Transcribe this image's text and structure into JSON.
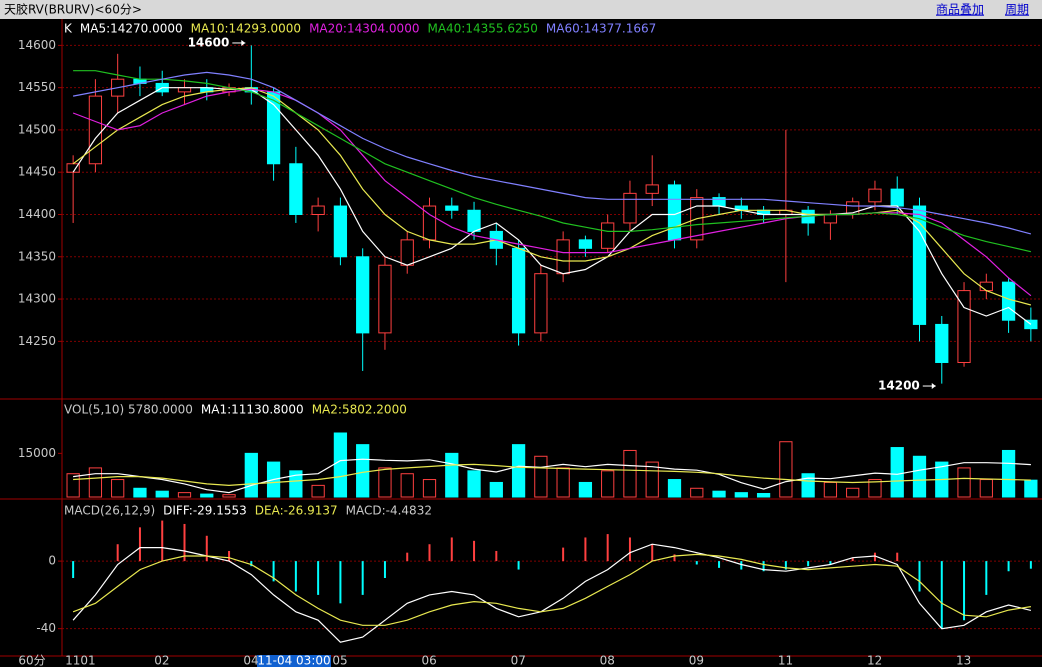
{
  "header": {
    "title": "天胶RV(BRURV)<60分>",
    "links": [
      "商品叠加",
      "周期"
    ]
  },
  "footer": {
    "period": "60分",
    "cursor": "11-04 03:00"
  },
  "chart_data": [
    {
      "type": "candlestick",
      "title": "K",
      "categories": [
        "1101",
        null,
        null,
        null,
        "02",
        null,
        null,
        null,
        "04",
        null,
        null,
        null,
        "05",
        null,
        null,
        null,
        "06",
        null,
        null,
        null,
        "07",
        null,
        null,
        null,
        "08",
        null,
        null,
        null,
        "09",
        null,
        null,
        null,
        "11",
        null,
        null,
        null,
        "12",
        null,
        null,
        null,
        "13",
        null,
        null,
        null
      ],
      "open": [
        14450,
        14460,
        14540,
        14560,
        14555,
        14545,
        14550,
        14545,
        14550,
        14545,
        14460,
        14400,
        14410,
        14350,
        14260,
        14340,
        14370,
        14410,
        14405,
        14380,
        14360,
        14260,
        14330,
        14370,
        14360,
        14390,
        14425,
        14435,
        14370,
        14420,
        14410,
        14405,
        14400,
        14405,
        14390,
        14400,
        14415,
        14430,
        14410,
        14270,
        14225,
        14310,
        14320,
        14275
      ],
      "high": [
        14470,
        14560,
        14590,
        14575,
        14570,
        14560,
        14560,
        14555,
        14600,
        14550,
        14480,
        14420,
        14420,
        14360,
        14350,
        14380,
        14420,
        14420,
        14415,
        14390,
        14370,
        14340,
        14380,
        14375,
        14400,
        14440,
        14470,
        14440,
        14430,
        14425,
        14420,
        14410,
        14500,
        14410,
        14405,
        14420,
        14440,
        14445,
        14420,
        14280,
        14320,
        14330,
        14325,
        14290
      ],
      "low": [
        14390,
        14450,
        14520,
        14540,
        14540,
        14530,
        14535,
        14540,
        14530,
        14440,
        14390,
        14380,
        14340,
        14215,
        14240,
        14330,
        14360,
        14395,
        14370,
        14340,
        14245,
        14250,
        14320,
        14350,
        14355,
        14380,
        14410,
        14360,
        14360,
        14400,
        14395,
        14390,
        14320,
        14375,
        14370,
        14395,
        14405,
        14400,
        14250,
        14200,
        14220,
        14300,
        14260,
        14250
      ],
      "close": [
        14460,
        14540,
        14560,
        14555,
        14545,
        14550,
        14545,
        14550,
        14545,
        14460,
        14400,
        14410,
        14350,
        14260,
        14340,
        14370,
        14410,
        14405,
        14380,
        14360,
        14260,
        14330,
        14370,
        14360,
        14390,
        14425,
        14435,
        14370,
        14420,
        14410,
        14405,
        14400,
        14405,
        14390,
        14400,
        14415,
        14430,
        14410,
        14270,
        14225,
        14310,
        14320,
        14275,
        14265
      ],
      "up_color": "#ff4040",
      "down_color": "#00ffff",
      "max_label": 14600,
      "min_label": 14200,
      "series": [
        {
          "name": "MA5:14270.0000",
          "color": "#ffffff",
          "values": [
            14450,
            14490,
            14520,
            14535,
            14550,
            14550,
            14550,
            14548,
            14548,
            14530,
            14500,
            14470,
            14430,
            14380,
            14350,
            14340,
            14350,
            14360,
            14380,
            14390,
            14370,
            14340,
            14330,
            14335,
            14350,
            14380,
            14400,
            14400,
            14410,
            14410,
            14405,
            14400,
            14400,
            14400,
            14400,
            14402,
            14410,
            14410,
            14380,
            14330,
            14290,
            14280,
            14290,
            14270
          ]
        },
        {
          "name": "MA10:14293.0000",
          "color": "#e8e850",
          "values": [
            14460,
            14480,
            14500,
            14515,
            14530,
            14540,
            14545,
            14548,
            14550,
            14540,
            14520,
            14500,
            14470,
            14430,
            14400,
            14380,
            14370,
            14365,
            14365,
            14370,
            14360,
            14350,
            14345,
            14345,
            14350,
            14360,
            14375,
            14385,
            14395,
            14400,
            14405,
            14405,
            14405,
            14400,
            14400,
            14400,
            14402,
            14405,
            14390,
            14360,
            14330,
            14310,
            14300,
            14293
          ]
        },
        {
          "name": "MA20:14304.0000",
          "color": "#e020e0",
          "values": [
            14520,
            14510,
            14500,
            14505,
            14520,
            14530,
            14540,
            14545,
            14548,
            14545,
            14535,
            14520,
            14500,
            14470,
            14440,
            14420,
            14400,
            14385,
            14375,
            14370,
            14365,
            14360,
            14355,
            14355,
            14355,
            14360,
            14365,
            14370,
            14375,
            14380,
            14385,
            14390,
            14395,
            14398,
            14400,
            14400,
            14402,
            14402,
            14400,
            14390,
            14370,
            14350,
            14325,
            14304
          ]
        },
        {
          "name": "MA40:14355.6250",
          "color": "#20c020",
          "values": [
            14570,
            14570,
            14565,
            14560,
            14560,
            14558,
            14555,
            14550,
            14545,
            14535,
            14520,
            14505,
            14490,
            14475,
            14460,
            14450,
            14440,
            14430,
            14420,
            14412,
            14405,
            14398,
            14390,
            14385,
            14380,
            14380,
            14382,
            14385,
            14388,
            14390,
            14392,
            14394,
            14396,
            14398,
            14400,
            14400,
            14402,
            14400,
            14395,
            14385,
            14375,
            14368,
            14362,
            14356
          ]
        },
        {
          "name": "MA60:14377.1667",
          "color": "#8080ff",
          "values": [
            14540,
            14545,
            14550,
            14555,
            14560,
            14565,
            14568,
            14565,
            14560,
            14550,
            14535,
            14520,
            14505,
            14490,
            14478,
            14468,
            14460,
            14452,
            14445,
            14440,
            14435,
            14430,
            14425,
            14420,
            14418,
            14418,
            14418,
            14418,
            14418,
            14418,
            14418,
            14418,
            14416,
            14414,
            14412,
            14410,
            14410,
            14408,
            14405,
            14400,
            14395,
            14390,
            14384,
            14377
          ]
        }
      ],
      "ylim": [
        14183,
        14630
      ],
      "yticks": [
        14250,
        14300,
        14350,
        14400,
        14450,
        14500,
        14550,
        14600
      ],
      "grid": true
    },
    {
      "type": "bar",
      "title": "VOL(5,10) 5780.0000",
      "values": [
        8000,
        10000,
        6000,
        3000,
        2000,
        1500,
        1000,
        800,
        15000,
        12000,
        9000,
        4000,
        22000,
        18000,
        10000,
        8000,
        6000,
        15000,
        9000,
        5000,
        18000,
        14000,
        10000,
        5000,
        9000,
        16000,
        12000,
        6000,
        3000,
        2000,
        1500,
        1200,
        19000,
        8000,
        5000,
        3000,
        6000,
        17000,
        14000,
        12000,
        10000,
        6000,
        16000,
        5780
      ],
      "series": [
        {
          "name": "MA1:11130.8000",
          "color": "#ffffff",
          "values": [
            7000,
            8000,
            8000,
            7000,
            6000,
            4500,
            2500,
            1500,
            4000,
            6000,
            7500,
            8000,
            12500,
            13000,
            12600,
            12400,
            12800,
            11400,
            9600,
            8600,
            10600,
            10200,
            11200,
            10400,
            11200,
            10800,
            10400,
            9600,
            9200,
            7800,
            4900,
            2700,
            5300,
            6500,
            6300,
            7240,
            8200,
            7800,
            9200,
            10400,
            11800,
            11800,
            11600,
            11130.8
          ]
        },
        {
          "name": "MA2:5802.2000",
          "color": "#e8e850",
          "values": [
            6000,
            6500,
            7000,
            7000,
            6500,
            5500,
            4500,
            4000,
            4500,
            5000,
            5500,
            6000,
            7000,
            8500,
            9500,
            10000,
            10500,
            11000,
            11200,
            10800,
            10200,
            10000,
            9800,
            9600,
            9400,
            9200,
            9000,
            8800,
            8500,
            8000,
            7200,
            6500,
            6000,
            5500,
            5200,
            5000,
            5200,
            5500,
            5800,
            6000,
            6400,
            6200,
            6000,
            5802.2
          ]
        }
      ],
      "ylim": [
        0,
        33000
      ],
      "yticks": [
        15000
      ],
      "grid": false
    },
    {
      "type": "macd",
      "title": "MACD(26,12,9)",
      "series": [
        {
          "name": "DIFF:-29.1553",
          "color": "#ffffff",
          "values": [
            -35,
            -20,
            -2,
            8,
            8,
            6,
            3,
            0,
            -8,
            -20,
            -30,
            -35,
            -48,
            -45,
            -35,
            -25,
            -20,
            -18,
            -20,
            -28,
            -33,
            -30,
            -22,
            -12,
            -5,
            5,
            10,
            8,
            5,
            2,
            -2,
            -5,
            -6,
            -4,
            -2,
            2,
            3,
            -2,
            -25,
            -40,
            -38,
            -30,
            -26,
            -29.1553
          ]
        },
        {
          "name": "DEA:-26.9137",
          "color": "#e8e850",
          "values": [
            -30,
            -25,
            -15,
            -5,
            0,
            3,
            3,
            2,
            -2,
            -10,
            -20,
            -28,
            -35,
            -38,
            -38,
            -35,
            -30,
            -26,
            -24,
            -25,
            -28,
            -30,
            -28,
            -22,
            -15,
            -8,
            0,
            3,
            4,
            3,
            1,
            -2,
            -4,
            -5,
            -4,
            -3,
            -2,
            -3,
            -12,
            -25,
            -32,
            -33,
            -29,
            -26.9137
          ]
        }
      ],
      "name": "MACD:-4.4832",
      "up_color": "#ff4040",
      "down_color": "#00ffff",
      "values": [
        -10,
        0,
        10,
        20,
        24,
        22,
        15,
        6,
        -3,
        -12,
        -18,
        -20,
        -25,
        -20,
        -10,
        5,
        10,
        14,
        12,
        6,
        -5,
        0,
        8,
        14,
        16,
        14,
        10,
        4,
        -2,
        -4,
        -5,
        -6,
        -5,
        -3,
        -2,
        2,
        5,
        5,
        -18,
        -40,
        -35,
        -20,
        -6,
        -4.4832
      ],
      "ylim": [
        -55,
        35
      ],
      "yticks": [
        0,
        -40
      ],
      "grid": true
    }
  ]
}
